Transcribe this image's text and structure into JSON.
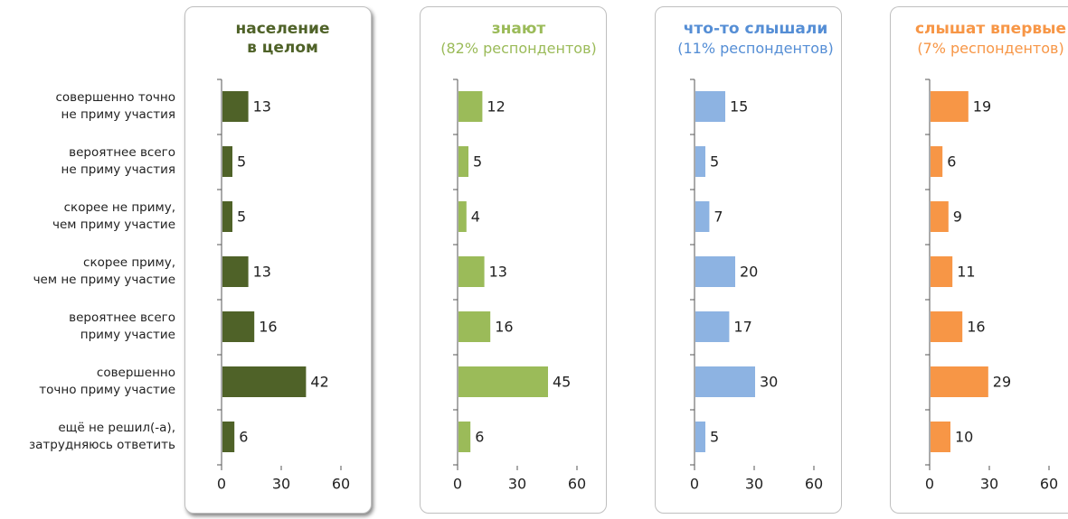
{
  "chart_data": {
    "type": "bar",
    "orientation": "horizontal",
    "categories": [
      "совершенно точно\nне приму участия",
      "вероятнее всего\nне приму участия",
      "скорее не приму,\nчем приму участие",
      "скорее приму,\nчем не приму участие",
      "вероятнее всего\nприму участие",
      "совершенно\nточно приму участие",
      "ещё не решил(-а),\nзатрудняюсь ответить"
    ],
    "series": [
      {
        "name": "население\nв целом",
        "color": "#4f6228",
        "values": [
          13,
          5,
          5,
          13,
          16,
          42,
          6
        ]
      },
      {
        "name": "знают",
        "subtitle": "(82% респондентов)",
        "color": "#9bbb59",
        "values": [
          12,
          5,
          4,
          13,
          16,
          45,
          6
        ]
      },
      {
        "name": "что-то слышали",
        "subtitle": "(11% респондентов)",
        "color": "#8db3e2",
        "values": [
          15,
          5,
          7,
          20,
          17,
          30,
          5
        ]
      },
      {
        "name": "слышат впервые",
        "subtitle": "(7% респондентов)",
        "color": "#f79646",
        "values": [
          19,
          6,
          9,
          11,
          16,
          29,
          10
        ]
      }
    ],
    "title_colors": [
      "#4f6228",
      "#9bbb59",
      "#558ed5",
      "#f79646"
    ],
    "xlim": [
      0,
      60
    ],
    "xticks": [
      0,
      30,
      60
    ]
  }
}
